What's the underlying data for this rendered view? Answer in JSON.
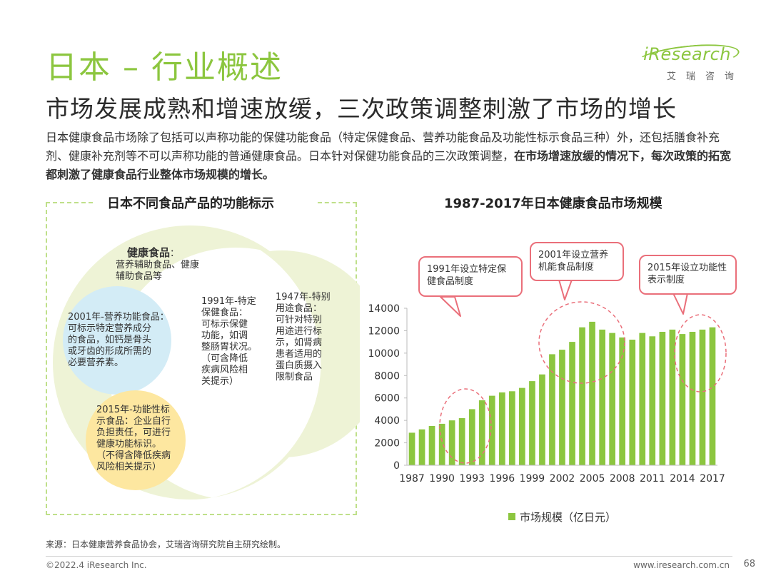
{
  "header": {
    "title": "日本 – 行业概述",
    "logo_text": "iResearch",
    "logo_sub": "艾瑞咨询"
  },
  "subtitle": "市场发展成熟和增速放缓，三次政策调整刺激了市场的增长",
  "intro": {
    "normal": "日本健康食品市场除了包括可以声称功能的保健功能食品（特定保健食品、营养功能食品及功能性标示食品三种）外，还包括膳食补充剂、健康补充剂等不可以声称功能的普通健康食品。日本针对保健功能食品的三次政策调整，",
    "bold": "在市场增速放缓的情况下，每次政策的拓宽都刺激了健康食品行业整体市场规模的增长。"
  },
  "left_panel": {
    "title": "日本不同食品产品的功能标示",
    "health_food_title": "健康食品",
    "health_food_colon": "：",
    "health_food_desc": [
      "营养辅助食品、健康",
      "辅助食品等"
    ],
    "nutrition_2001": [
      "2001年-营养功能食品：",
      "可标示特定营养成分",
      "的食品，如钙是骨头",
      "或牙齿的形成所需的",
      "必要营养素。"
    ],
    "functional_2015": [
      "2015年-功能性标",
      "示食品：企业自行",
      "负担责任，可进行",
      "健康功能标识。",
      "（不得含降低疾病",
      "风险相关提示）"
    ],
    "specified_1991": [
      "1991年-特定",
      "保健食品：",
      "可标示保健",
      "功能，如调",
      "整肠胃状况。",
      "（可含降低",
      "疾病风险相",
      "关提示）"
    ],
    "special_1947": [
      "1947年-特别",
      "用途食品：",
      "可针对特别",
      "用途进行标",
      "示，如肾病",
      "患者适用的",
      "蛋白质摄入",
      "限制食品"
    ]
  },
  "callouts": {
    "c1991": [
      "1991年设立特定保",
      "健食品制度"
    ],
    "c2001": [
      "2001年设立营养",
      "机能食品制度"
    ],
    "c2015": [
      "2015年设立功能性",
      "表示制度"
    ]
  },
  "legend_label": "市场规模（亿日元）",
  "source": "来源：日本健康营养食品协会，艾瑞咨询研究院自主研究绘制。",
  "footer": {
    "copyright": "©2022.4 iResearch Inc.",
    "site": "www.iresearch.com.cn",
    "page": "68"
  },
  "colors": {
    "brand_green": "#8cc63f",
    "callout_red": "#ea6f7a",
    "circle_yellow": "#eef3d6",
    "circle_blue": "#d3ecf6",
    "circle_gold": "#fde7a0"
  },
  "chart_data": {
    "type": "bar",
    "title": "1987-2017年日本健康食品市场规模",
    "series": [
      {
        "name": "市场规模（亿日元）",
        "x": [
          1987,
          1988,
          1989,
          1990,
          1991,
          1992,
          1993,
          1994,
          1995,
          1996,
          1997,
          1998,
          1999,
          2000,
          2001,
          2002,
          2003,
          2004,
          2005,
          2006,
          2007,
          2008,
          2009,
          2010,
          2011,
          2012,
          2013,
          2014,
          2015,
          2016,
          2017
        ],
        "values": [
          2900,
          3200,
          3500,
          3700,
          4000,
          4200,
          5000,
          5800,
          6200,
          6500,
          6600,
          6900,
          7500,
          8100,
          9900,
          10300,
          11000,
          12300,
          12800,
          12100,
          11800,
          11400,
          11200,
          11800,
          11500,
          11900,
          12100,
          11700,
          11900,
          12100,
          12300
        ]
      }
    ],
    "ylim": [
      0,
      14000
    ],
    "yticks": [
      0,
      2000,
      4000,
      6000,
      8000,
      10000,
      12000,
      14000
    ],
    "xticks": [
      1987,
      1990,
      1993,
      1996,
      1999,
      2002,
      2005,
      2008,
      2011,
      2014,
      2017
    ],
    "xlabel": "",
    "ylabel": "",
    "legend": "bottom"
  }
}
